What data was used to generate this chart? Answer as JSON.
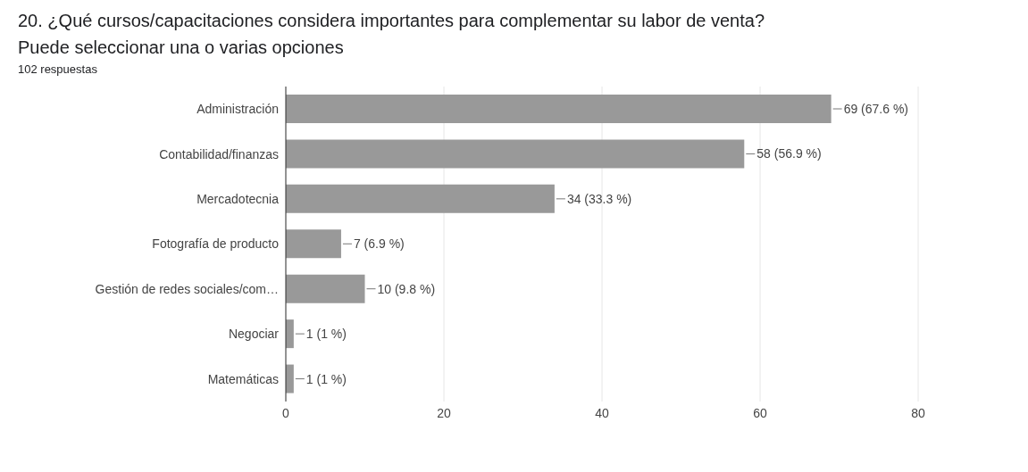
{
  "chart_data": {
    "type": "bar",
    "orientation": "horizontal",
    "title": "20. ¿Qué cursos/capacitaciones considera importantes para complementar su labor de venta? Puede seleccionar una o varias opciones",
    "subtitle": "102 respuestas",
    "categories": [
      "Administración",
      "Contabilidad/finanzas",
      "Mercadotecnia",
      "Fotografía de producto",
      "Gestión de redes sociales/com…",
      "Negociar",
      "Matemáticas"
    ],
    "values": [
      69,
      58,
      34,
      7,
      10,
      1,
      1
    ],
    "value_labels": [
      "69 (67.6 %)",
      "58 (56.9 %)",
      "34 (33.3 %)",
      "7 (6.9 %)",
      "10 (9.8 %)",
      "1 (1 %)",
      "1 (1 %)"
    ],
    "color": "#999999",
    "xlim": [
      0,
      80
    ],
    "xticks": [
      0,
      20,
      40,
      60,
      80
    ],
    "grid": "x"
  }
}
